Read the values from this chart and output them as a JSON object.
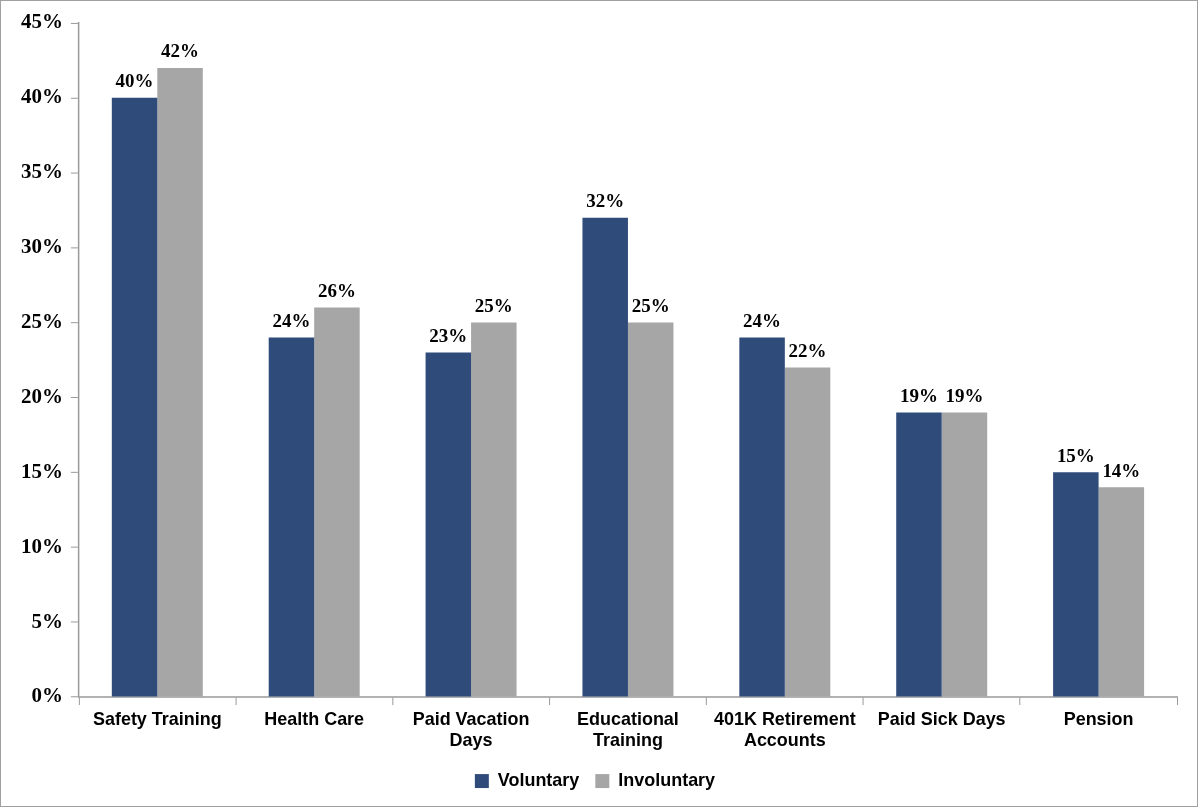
{
  "chart_data": {
    "type": "bar",
    "categories": [
      "Safety Training",
      "Health Care",
      "Paid Vacation Days",
      "Educational Training",
      "401K Retirement Accounts",
      "Paid Sick Days",
      "Pension"
    ],
    "series": [
      {
        "name": "Voluntary",
        "color": "#2f4b7a",
        "values": [
          40,
          24,
          23,
          32,
          24,
          19,
          15
        ],
        "value_labels": [
          "40%",
          "24%",
          "23%",
          "32%",
          "24%",
          "19%",
          "15%"
        ]
      },
      {
        "name": "Involuntary",
        "color": "#a6a6a6",
        "values": [
          42,
          26,
          25,
          25,
          22,
          19,
          14
        ],
        "value_labels": [
          "42%",
          "26%",
          "25%",
          "25%",
          "22%",
          "19%",
          "14%"
        ]
      }
    ],
    "ylim": [
      0,
      45
    ],
    "yticks": [
      {
        "value": 0,
        "label": "0%"
      },
      {
        "value": 5,
        "label": "5%"
      },
      {
        "value": 10,
        "label": "10%"
      },
      {
        "value": 15,
        "label": "15%"
      },
      {
        "value": 20,
        "label": "20%"
      },
      {
        "value": 25,
        "label": "25%"
      },
      {
        "value": 30,
        "label": "30%"
      },
      {
        "value": 35,
        "label": "35%"
      },
      {
        "value": 40,
        "label": "40%"
      },
      {
        "value": 45,
        "label": "45%"
      }
    ],
    "legend": "bottom"
  }
}
